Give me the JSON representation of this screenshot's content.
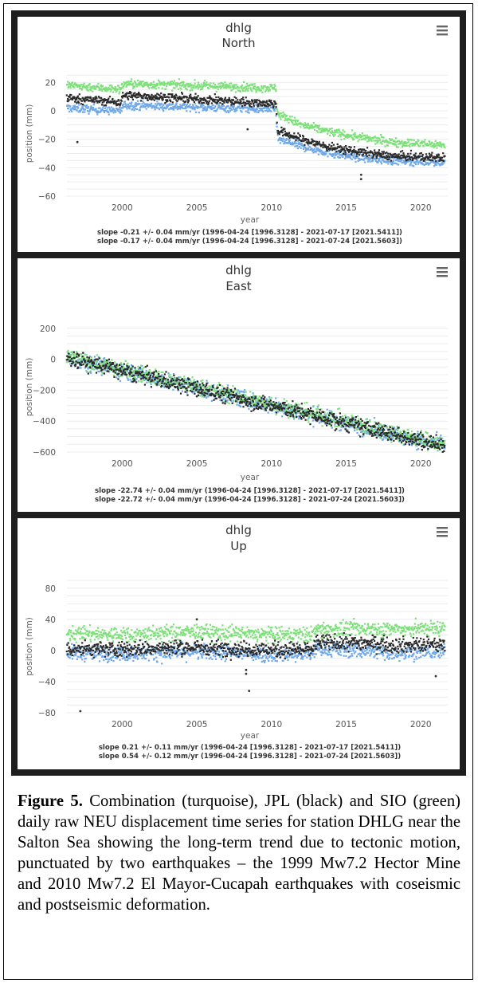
{
  "chart_data": [
    {
      "type": "scatter",
      "title": "dhlg",
      "subtitle": "North",
      "xlabel": "year",
      "ylabel": "position (mm)",
      "xlim": [
        1996.3,
        2021.8
      ],
      "ylim": [
        -60,
        28
      ],
      "yticks": [
        20,
        0,
        -20,
        -40,
        -60
      ],
      "xticks": [
        2000,
        2005,
        2010,
        2015,
        2020
      ],
      "colors": {
        "combination": "#6fa8e8",
        "jpl": "#2a2a2a",
        "sio": "#7ee07a"
      },
      "series": [
        {
          "key": "combination",
          "x": [
            1996.3,
            1999.9,
            2000.1,
            2010.3,
            2010.4,
            2012,
            2014,
            2016,
            2018,
            2021.6
          ],
          "y": [
            2,
            0,
            4,
            1,
            -20,
            -25,
            -30,
            -33,
            -35,
            -36
          ]
        },
        {
          "key": "jpl",
          "x": [
            1996.3,
            1999.9,
            2000.1,
            2010.3,
            2010.4,
            2012,
            2014,
            2016,
            2018,
            2021.6
          ],
          "y": [
            9,
            6,
            11,
            5,
            -14,
            -20,
            -26,
            -29,
            -32,
            -33
          ]
        },
        {
          "key": "sio",
          "x": [
            1996.3,
            1999.9,
            2000.1,
            2010.3,
            2010.4,
            2012,
            2014,
            2016,
            2018,
            2021.6
          ],
          "y": [
            18,
            15,
            19,
            16,
            -2,
            -10,
            -15,
            -19,
            -22,
            -24
          ]
        }
      ],
      "outliers": [
        [
          1997,
          -22
        ],
        [
          2008.4,
          -13
        ],
        [
          2016,
          -45
        ],
        [
          2016,
          -48
        ]
      ],
      "slopes": [
        "slope -0.21 +/- 0.04 mm/yr (1996-04-24 [1996.3128] - 2021-07-17 [2021.5411])",
        "slope -0.17 +/- 0.04 mm/yr (1996-04-24 [1996.3128] - 2021-07-24 [2021.5603])"
      ]
    },
    {
      "type": "scatter",
      "title": "dhlg",
      "subtitle": "East",
      "xlabel": "year",
      "ylabel": "position (mm)",
      "xlim": [
        1996.3,
        2021.8
      ],
      "ylim": [
        -600,
        240
      ],
      "yticks": [
        200,
        0,
        -200,
        -400,
        -600
      ],
      "xticks": [
        2000,
        2005,
        2010,
        2015,
        2020
      ],
      "colors": {
        "combination": "#6fa8e8",
        "jpl": "#2a2a2a",
        "sio": "#7ee07a"
      },
      "series": [
        {
          "key": "combination",
          "x": [
            1996.3,
            2021.6
          ],
          "y": [
            10,
            -563
          ]
        },
        {
          "key": "jpl",
          "x": [
            1996.3,
            2021.6
          ],
          "y": [
            8,
            -562
          ]
        },
        {
          "key": "sio",
          "x": [
            1996.3,
            2021.6
          ],
          "y": [
            16,
            -552
          ]
        }
      ],
      "outliers": [
        [
          1997,
          35
        ],
        [
          2005,
          -240
        ]
      ],
      "slopes": [
        "slope -22.74 +/- 0.04 mm/yr (1996-04-24 [1996.3128] - 2021-07-17 [2021.5411])",
        "slope -22.72 +/- 0.04 mm/yr (1996-04-24 [1996.3128] - 2021-07-24 [2021.5603])"
      ]
    },
    {
      "type": "scatter",
      "title": "dhlg",
      "subtitle": "Up",
      "xlabel": "year",
      "ylabel": "position (mm)",
      "xlim": [
        1996.3,
        2021.8
      ],
      "ylim": [
        -80,
        90
      ],
      "yticks": [
        80,
        40,
        0,
        -40,
        -80
      ],
      "xticks": [
        2000,
        2005,
        2010,
        2015,
        2020
      ],
      "colors": {
        "combination": "#6fa8e8",
        "jpl": "#2a2a2a",
        "sio": "#7ee07a"
      },
      "series": [
        {
          "key": "combination",
          "x": [
            1996.3,
            2000,
            2005,
            2010,
            2012.7,
            2013,
            2016,
            2018,
            2021.6
          ],
          "y": [
            -3,
            -4,
            -2,
            -5,
            -5,
            2,
            0,
            -3,
            -2
          ]
        },
        {
          "key": "jpl",
          "x": [
            1996.3,
            2000,
            2005,
            2010,
            2012.7,
            2013,
            2016,
            2018,
            2021.6
          ],
          "y": [
            2,
            2,
            4,
            1,
            1,
            10,
            10,
            7,
            7
          ]
        },
        {
          "key": "sio",
          "x": [
            1996.3,
            2000,
            2005,
            2010,
            2012.7,
            2013,
            2016,
            2018,
            2021.6
          ],
          "y": [
            22,
            20,
            24,
            20,
            20,
            27,
            28,
            27,
            29
          ]
        }
      ],
      "outliers": [
        [
          1997.2,
          -78
        ],
        [
          2005,
          40
        ],
        [
          2008.3,
          -25
        ],
        [
          2008.3,
          -30
        ],
        [
          2008.5,
          -52
        ],
        [
          2021,
          -33
        ]
      ],
      "slopes": [
        "slope 0.21 +/- 0.11 mm/yr (1996-04-24 [1996.3128] - 2021-07-17 [2021.5411])",
        "slope 0.54 +/- 0.12 mm/yr (1996-04-24 [1996.3128] - 2021-07-24 [2021.5603])"
      ]
    }
  ],
  "caption": {
    "label": "Figure 5.",
    "text": " Combination (turquoise), JPL (black) and SIO (green) daily raw NEU displacement time series for station DHLG near the Salton Sea showing the long-term trend due to tectonic motion, punctuated by two earthquakes – the 1999 Mw7.2 Hector Mine and 2010 Mw7.2 El Mayor-Cucapah earthquakes with coseismic and postseismic deformation."
  }
}
